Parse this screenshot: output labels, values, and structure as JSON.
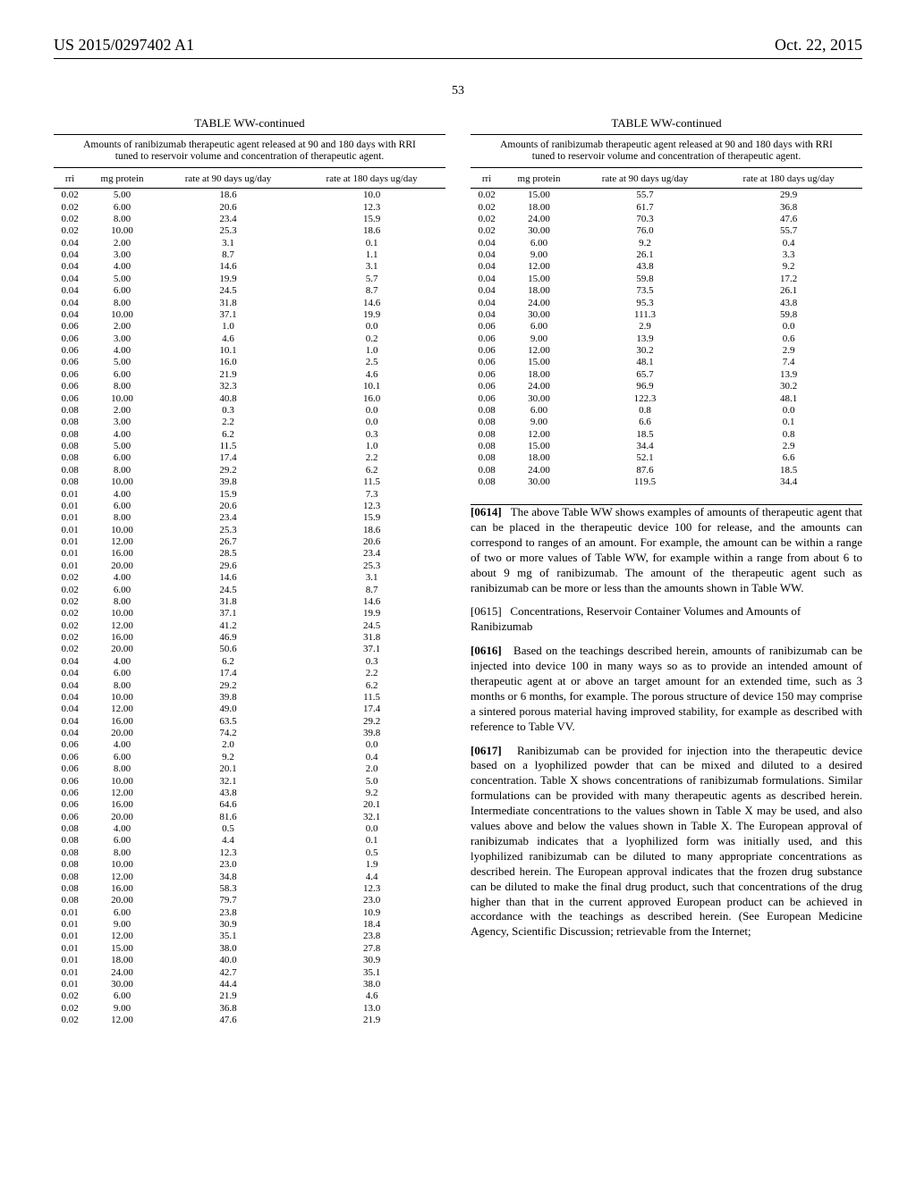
{
  "header": {
    "left": "US 2015/0297402 A1",
    "right": "Oct. 22, 2015"
  },
  "page_number": "53",
  "table_ww": {
    "title": "TABLE WW-continued",
    "subtitle": "Amounts of ranibizumab therapeutic agent released at 90 and 180 days with RRI tuned to reservoir volume and concentration of therapeutic agent.",
    "columns": [
      "rri",
      "mg protein",
      "rate at 90 days ug/day",
      "rate at 180 days ug/day"
    ]
  },
  "left_rows": [
    [
      "0.02",
      "5.00",
      "18.6",
      "10.0"
    ],
    [
      "0.02",
      "6.00",
      "20.6",
      "12.3"
    ],
    [
      "0.02",
      "8.00",
      "23.4",
      "15.9"
    ],
    [
      "0.02",
      "10.00",
      "25.3",
      "18.6"
    ],
    [
      "0.04",
      "2.00",
      "3.1",
      "0.1"
    ],
    [
      "0.04",
      "3.00",
      "8.7",
      "1.1"
    ],
    [
      "0.04",
      "4.00",
      "14.6",
      "3.1"
    ],
    [
      "0.04",
      "5.00",
      "19.9",
      "5.7"
    ],
    [
      "0.04",
      "6.00",
      "24.5",
      "8.7"
    ],
    [
      "0.04",
      "8.00",
      "31.8",
      "14.6"
    ],
    [
      "0.04",
      "10.00",
      "37.1",
      "19.9"
    ],
    [
      "0.06",
      "2.00",
      "1.0",
      "0.0"
    ],
    [
      "0.06",
      "3.00",
      "4.6",
      "0.2"
    ],
    [
      "0.06",
      "4.00",
      "10.1",
      "1.0"
    ],
    [
      "0.06",
      "5.00",
      "16.0",
      "2.5"
    ],
    [
      "0.06",
      "6.00",
      "21.9",
      "4.6"
    ],
    [
      "0.06",
      "8.00",
      "32.3",
      "10.1"
    ],
    [
      "0.06",
      "10.00",
      "40.8",
      "16.0"
    ],
    [
      "0.08",
      "2.00",
      "0.3",
      "0.0"
    ],
    [
      "0.08",
      "3.00",
      "2.2",
      "0.0"
    ],
    [
      "0.08",
      "4.00",
      "6.2",
      "0.3"
    ],
    [
      "0.08",
      "5.00",
      "11.5",
      "1.0"
    ],
    [
      "0.08",
      "6.00",
      "17.4",
      "2.2"
    ],
    [
      "0.08",
      "8.00",
      "29.2",
      "6.2"
    ],
    [
      "0.08",
      "10.00",
      "39.8",
      "11.5"
    ],
    [
      "0.01",
      "4.00",
      "15.9",
      "7.3"
    ],
    [
      "0.01",
      "6.00",
      "20.6",
      "12.3"
    ],
    [
      "0.01",
      "8.00",
      "23.4",
      "15.9"
    ],
    [
      "0.01",
      "10.00",
      "25.3",
      "18.6"
    ],
    [
      "0.01",
      "12.00",
      "26.7",
      "20.6"
    ],
    [
      "0.01",
      "16.00",
      "28.5",
      "23.4"
    ],
    [
      "0.01",
      "20.00",
      "29.6",
      "25.3"
    ],
    [
      "0.02",
      "4.00",
      "14.6",
      "3.1"
    ],
    [
      "0.02",
      "6.00",
      "24.5",
      "8.7"
    ],
    [
      "0.02",
      "8.00",
      "31.8",
      "14.6"
    ],
    [
      "0.02",
      "10.00",
      "37.1",
      "19.9"
    ],
    [
      "0.02",
      "12.00",
      "41.2",
      "24.5"
    ],
    [
      "0.02",
      "16.00",
      "46.9",
      "31.8"
    ],
    [
      "0.02",
      "20.00",
      "50.6",
      "37.1"
    ],
    [
      "0.04",
      "4.00",
      "6.2",
      "0.3"
    ],
    [
      "0.04",
      "6.00",
      "17.4",
      "2.2"
    ],
    [
      "0.04",
      "8.00",
      "29.2",
      "6.2"
    ],
    [
      "0.04",
      "10.00",
      "39.8",
      "11.5"
    ],
    [
      "0.04",
      "12.00",
      "49.0",
      "17.4"
    ],
    [
      "0.04",
      "16.00",
      "63.5",
      "29.2"
    ],
    [
      "0.04",
      "20.00",
      "74.2",
      "39.8"
    ],
    [
      "0.06",
      "4.00",
      "2.0",
      "0.0"
    ],
    [
      "0.06",
      "6.00",
      "9.2",
      "0.4"
    ],
    [
      "0.06",
      "8.00",
      "20.1",
      "2.0"
    ],
    [
      "0.06",
      "10.00",
      "32.1",
      "5.0"
    ],
    [
      "0.06",
      "12.00",
      "43.8",
      "9.2"
    ],
    [
      "0.06",
      "16.00",
      "64.6",
      "20.1"
    ],
    [
      "0.06",
      "20.00",
      "81.6",
      "32.1"
    ],
    [
      "0.08",
      "4.00",
      "0.5",
      "0.0"
    ],
    [
      "0.08",
      "6.00",
      "4.4",
      "0.1"
    ],
    [
      "0.08",
      "8.00",
      "12.3",
      "0.5"
    ],
    [
      "0.08",
      "10.00",
      "23.0",
      "1.9"
    ],
    [
      "0.08",
      "12.00",
      "34.8",
      "4.4"
    ],
    [
      "0.08",
      "16.00",
      "58.3",
      "12.3"
    ],
    [
      "0.08",
      "20.00",
      "79.7",
      "23.0"
    ],
    [
      "0.01",
      "6.00",
      "23.8",
      "10.9"
    ],
    [
      "0.01",
      "9.00",
      "30.9",
      "18.4"
    ],
    [
      "0.01",
      "12.00",
      "35.1",
      "23.8"
    ],
    [
      "0.01",
      "15.00",
      "38.0",
      "27.8"
    ],
    [
      "0.01",
      "18.00",
      "40.0",
      "30.9"
    ],
    [
      "0.01",
      "24.00",
      "42.7",
      "35.1"
    ],
    [
      "0.01",
      "30.00",
      "44.4",
      "38.0"
    ],
    [
      "0.02",
      "6.00",
      "21.9",
      "4.6"
    ],
    [
      "0.02",
      "9.00",
      "36.8",
      "13.0"
    ],
    [
      "0.02",
      "12.00",
      "47.6",
      "21.9"
    ]
  ],
  "right_rows": [
    [
      "0.02",
      "15.00",
      "55.7",
      "29.9"
    ],
    [
      "0.02",
      "18.00",
      "61.7",
      "36.8"
    ],
    [
      "0.02",
      "24.00",
      "70.3",
      "47.6"
    ],
    [
      "0.02",
      "30.00",
      "76.0",
      "55.7"
    ],
    [
      "0.04",
      "6.00",
      "9.2",
      "0.4"
    ],
    [
      "0.04",
      "9.00",
      "26.1",
      "3.3"
    ],
    [
      "0.04",
      "12.00",
      "43.8",
      "9.2"
    ],
    [
      "0.04",
      "15.00",
      "59.8",
      "17.2"
    ],
    [
      "0.04",
      "18.00",
      "73.5",
      "26.1"
    ],
    [
      "0.04",
      "24.00",
      "95.3",
      "43.8"
    ],
    [
      "0.04",
      "30.00",
      "111.3",
      "59.8"
    ],
    [
      "0.06",
      "6.00",
      "2.9",
      "0.0"
    ],
    [
      "0.06",
      "9.00",
      "13.9",
      "0.6"
    ],
    [
      "0.06",
      "12.00",
      "30.2",
      "2.9"
    ],
    [
      "0.06",
      "15.00",
      "48.1",
      "7.4"
    ],
    [
      "0.06",
      "18.00",
      "65.7",
      "13.9"
    ],
    [
      "0.06",
      "24.00",
      "96.9",
      "30.2"
    ],
    [
      "0.06",
      "30.00",
      "122.3",
      "48.1"
    ],
    [
      "0.08",
      "6.00",
      "0.8",
      "0.0"
    ],
    [
      "0.08",
      "9.00",
      "6.6",
      "0.1"
    ],
    [
      "0.08",
      "12.00",
      "18.5",
      "0.8"
    ],
    [
      "0.08",
      "15.00",
      "34.4",
      "2.9"
    ],
    [
      "0.08",
      "18.00",
      "52.1",
      "6.6"
    ],
    [
      "0.08",
      "24.00",
      "87.6",
      "18.5"
    ],
    [
      "0.08",
      "30.00",
      "119.5",
      "34.4"
    ]
  ],
  "paragraphs": {
    "p0614": {
      "num": "[0614]",
      "text": "The above Table WW shows examples of amounts of therapeutic agent that can be placed in the therapeutic device 100 for release, and the amounts can correspond to ranges of an amount. For example, the amount can be within a range of two or more values of Table WW, for example within a range from about 6 to about 9 mg of ranibizumab. The amount of the therapeutic agent such as ranibizumab can be more or less than the amounts shown in Table WW."
    },
    "p0615": {
      "num": "[0615]",
      "text": "Concentrations, Reservoir Container Volumes and Amounts of Ranibizumab"
    },
    "p0616": {
      "num": "[0616]",
      "text": "Based on the teachings described herein, amounts of ranibizumab can be injected into device 100 in many ways so as to provide an intended amount of therapeutic agent at or above an target amount for an extended time, such as 3 months or 6 months, for example. The porous structure of device 150 may comprise a sintered porous material having improved stability, for example as described with reference to Table VV."
    },
    "p0617": {
      "num": "[0617]",
      "text": "Ranibizumab can be provided for injection into the therapeutic device based on a lyophilized powder that can be mixed and diluted to a desired concentration. Table X shows concentrations of ranibizumab formulations. Similar formulations can be provided with many therapeutic agents as described herein. Intermediate concentrations to the values shown in Table X may be used, and also values above and below the values shown in Table X. The European approval of ranibizumab indicates that a lyophilized form was initially used, and this lyophilized ranibizumab can be diluted to many appropriate concentrations as described herein. The European approval indicates that the frozen drug substance can be diluted to make the final drug product, such that concentrations of the drug higher than that in the current approved European product can be achieved in accordance with the teachings as described herein. (See European Medicine Agency, Scientific Discussion; retrievable from the Internet;"
    }
  }
}
